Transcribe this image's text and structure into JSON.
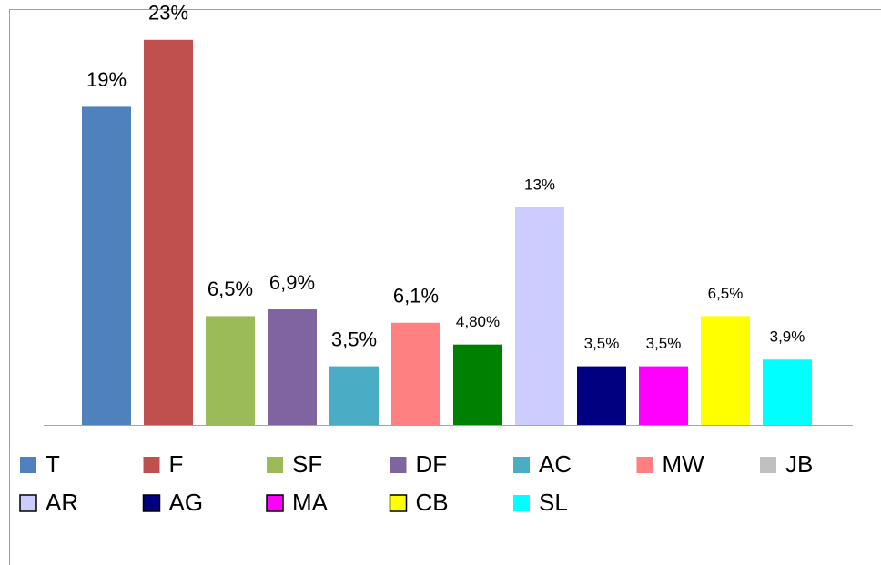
{
  "chart_data": {
    "type": "bar",
    "ylim": [
      0,
      25
    ],
    "series": [
      {
        "name": "T",
        "color": "#4f81bd",
        "values": [
          19
        ],
        "value_labels": [
          "19%"
        ]
      },
      {
        "name": "F",
        "color": "#c0504d",
        "values": [
          23
        ],
        "value_labels": [
          "23%"
        ]
      },
      {
        "name": "SF",
        "color": "#9bbb59",
        "values": [
          6.5
        ],
        "value_labels": [
          "6,5%"
        ]
      },
      {
        "name": "DF",
        "color": "#8064a2",
        "values": [
          6.9
        ],
        "value_labels": [
          "6,9%"
        ]
      },
      {
        "name": "AC",
        "color": "#4bacc6",
        "values": [
          3.5
        ],
        "value_labels": [
          "3,5%"
        ]
      },
      {
        "name": "MW",
        "color": "#ff8080",
        "values": [
          6.1
        ],
        "value_labels": [
          "6,1%"
        ]
      },
      {
        "name": "JB",
        "color": "#008000",
        "legend_color": "#c0c0c0",
        "values": [
          4.8
        ],
        "value_labels": [
          "4,80%"
        ]
      },
      {
        "name": "AR",
        "color": "#ccccff",
        "values": [
          13
        ],
        "value_labels": [
          "13%"
        ]
      },
      {
        "name": "AG",
        "color": "#000080",
        "values": [
          3.5
        ],
        "value_labels": [
          "3,5%"
        ]
      },
      {
        "name": "MA",
        "color": "#ff00ff",
        "values": [
          3.5
        ],
        "value_labels": [
          "3,5%"
        ]
      },
      {
        "name": "CB",
        "color": "#ffff00",
        "values": [
          6.5
        ],
        "value_labels": [
          "6,5%"
        ]
      },
      {
        "name": "SL",
        "color": "#00ffff",
        "values": [
          3.9
        ],
        "value_labels": [
          "3,9%"
        ]
      }
    ],
    "legend": "bottom"
  }
}
